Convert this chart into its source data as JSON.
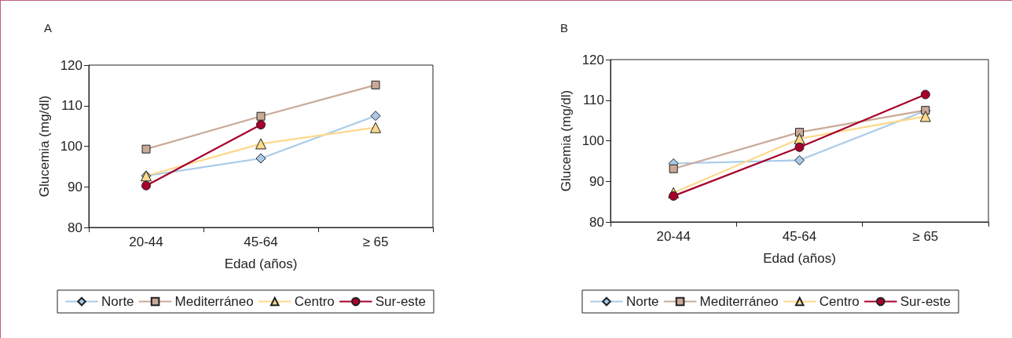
{
  "chart_data": [
    {
      "type": "line",
      "title": "A",
      "xlabel": "Edad (años)",
      "ylabel": "Glucemia (mg/dl)",
      "categories": [
        "20-44",
        "45-64",
        "≥ 65"
      ],
      "ylim": [
        80,
        120
      ],
      "yticks": [
        80,
        90,
        100,
        110,
        120
      ],
      "grid": false,
      "legend": "bottom",
      "series": [
        {
          "name": "Norte",
          "color": "#a9cbe8",
          "marker": "diamond",
          "values": [
            92.7,
            97.0,
            107.5
          ]
        },
        {
          "name": "Mediterráneo",
          "color": "#c9aa98",
          "marker": "square",
          "values": [
            99.3,
            107.4,
            115.1
          ]
        },
        {
          "name": "Centro",
          "color": "#fdd98c",
          "marker": "triangle",
          "values": [
            92.7,
            100.6,
            104.6
          ]
        },
        {
          "name": "Sur-este",
          "color": "#a6002a",
          "marker": "circle",
          "values": [
            90.3,
            105.3,
            null
          ]
        }
      ]
    },
    {
      "type": "line",
      "title": "B",
      "xlabel": "Edad (años)",
      "ylabel": "Glucemia (mg/dl)",
      "categories": [
        "20-44",
        "45-64",
        "≥ 65"
      ],
      "ylim": [
        80,
        120
      ],
      "yticks": [
        80,
        90,
        100,
        110,
        120
      ],
      "grid": false,
      "legend": "bottom",
      "series": [
        {
          "name": "Norte",
          "color": "#a9cbe8",
          "marker": "diamond",
          "values": [
            94.4,
            95.2,
            107.4
          ]
        },
        {
          "name": "Mediterráneo",
          "color": "#c9aa98",
          "marker": "square",
          "values": [
            93.1,
            102.1,
            107.5
          ]
        },
        {
          "name": "Centro",
          "color": "#fdd98c",
          "marker": "triangle",
          "values": [
            87.2,
            100.5,
            106.0
          ]
        },
        {
          "name": "Sur-este",
          "color": "#a6002a",
          "marker": "circle",
          "values": [
            86.4,
            98.4,
            111.4
          ]
        }
      ]
    }
  ]
}
